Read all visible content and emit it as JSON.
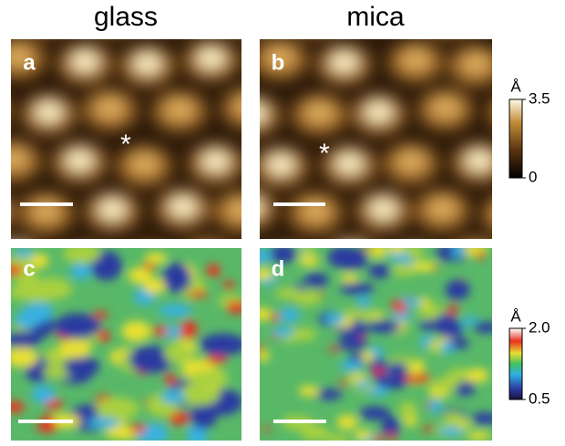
{
  "columns": [
    "glass",
    "mica"
  ],
  "panels": [
    {
      "label": "a",
      "marker": "*"
    },
    {
      "label": "b",
      "marker": "*"
    },
    {
      "label": "c"
    },
    {
      "label": "d"
    }
  ],
  "colorbars": [
    {
      "unit": "Å",
      "ticks": [
        3.5,
        0
      ]
    },
    {
      "unit": "Å",
      "ticks": [
        {
          "value": 2,
          "label": "2.0"
        },
        0.5
      ]
    }
  ]
}
